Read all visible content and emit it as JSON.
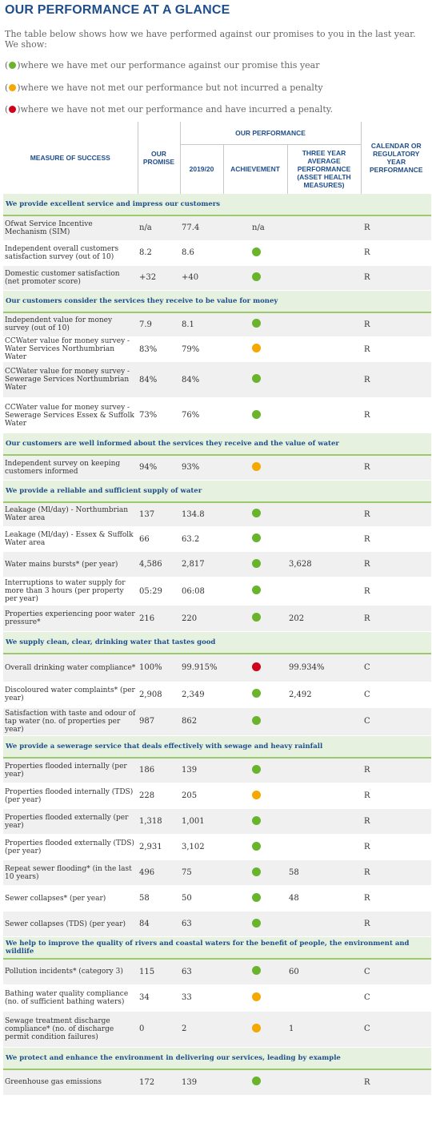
{
  "title": "OUR PERFORMANCE AT A GLANCE",
  "intro": "The table below shows how we have performed against our promises to you in the last year. We show:",
  "legend": [
    {
      "color": "green",
      "text": " where we have met our performance against our promise this year"
    },
    {
      "color": "amber",
      "text": " where we have not met our performance but not incurred a penalty"
    },
    {
      "color": "red",
      "text": " where we have not met our performance and have incurred a penalty."
    }
  ],
  "colors": {
    "green": "#6ab42d",
    "amber": "#f5a800",
    "red": "#d0021b",
    "accent": "#1f4e8c",
    "section_bg": "#e6f2df"
  },
  "headers": {
    "measure": "MEASURE OF SUCCESS",
    "promise": "OUR PROMISE",
    "performance": "OUR PERFORMANCE",
    "year": "2019/20",
    "achievement": "ACHIEVEMENT",
    "three_year": "THREE YEAR AVERAGE PERFORMANCE (ASSET HEALTH MEASURES)",
    "calendar": "CALENDAR OR REGULATORY YEAR PERFORMANCE"
  },
  "sections": [
    {
      "title": "We provide excellent service and impress our customers",
      "rows": [
        {
          "measure": "Ofwat Service Incentive Mechanism (SIM)",
          "promise": "n/a",
          "year": "77.4",
          "achievement": "n/a",
          "three": "",
          "cal": "R"
        },
        {
          "measure": "Independent overall customers satisfaction survey (out of 10)",
          "promise": "8.2",
          "year": "8.6",
          "achievement": "green",
          "three": "",
          "cal": "R"
        },
        {
          "measure": "Domestic customer satisfaction (net promoter score)",
          "promise": "+32",
          "year": "+40",
          "achievement": "green",
          "three": "",
          "cal": "R"
        }
      ]
    },
    {
      "title": "Our customers consider the services they receive to be value for money",
      "rows": [
        {
          "measure": "Independent value for money survey (out of 10)",
          "promise": "7.9",
          "year": "8.1",
          "achievement": "green",
          "three": "",
          "cal": "R"
        },
        {
          "measure": "CCWater value for money survey - Water Services Northumbrian Water",
          "promise": "83%",
          "year": "79%",
          "achievement": "amber",
          "three": "",
          "cal": "R"
        },
        {
          "measure": "CCWater value for money survey - Sewerage Services Northumbrian Water",
          "promise": "84%",
          "year": "84%",
          "achievement": "green",
          "three": "",
          "cal": "R"
        },
        {
          "measure": "CCWater value for money survey - Sewerage Services Essex & Suffolk Water",
          "promise": "73%",
          "year": "76%",
          "achievement": "green",
          "three": "",
          "cal": "R"
        }
      ]
    },
    {
      "title": "Our customers are well informed about the services they receive and the value of water",
      "rows": [
        {
          "measure": "Independent survey on keeping customers informed",
          "promise": "94%",
          "year": "93%",
          "achievement": "amber",
          "three": "",
          "cal": "R"
        }
      ]
    },
    {
      "title": "We provide a reliable and sufficient supply of water",
      "rows": [
        {
          "measure": "Leakage (Ml/day) - Northumbrian Water area",
          "promise": "137",
          "year": "134.8",
          "achievement": "green",
          "three": "",
          "cal": "R"
        },
        {
          "measure": "Leakage (Ml/day) - Essex & Suffolk Water area",
          "promise": "66",
          "year": "63.2",
          "achievement": "green",
          "three": "",
          "cal": "R"
        },
        {
          "measure": "Water mains bursts* (per year)",
          "promise": "4,586",
          "year": "2,817",
          "achievement": "green",
          "three": "3,628",
          "cal": "R"
        },
        {
          "measure": "Interruptions to water supply for more than 3 hours (per property per year)",
          "promise": "05:29",
          "year": "06:08",
          "achievement": "green",
          "three": "",
          "cal": "R"
        },
        {
          "measure": "Properties experiencing poor water pressure*",
          "promise": "216",
          "year": "220",
          "achievement": "green",
          "three": "202",
          "cal": "R"
        }
      ]
    },
    {
      "title": "We supply clean, clear, drinking water that tastes good",
      "rows": [
        {
          "measure": "Overall drinking water compliance*",
          "promise": "100%",
          "year": "99.915%",
          "achievement": "red",
          "three": "99.934%",
          "cal": "C"
        },
        {
          "measure": "Discoloured water complaints* (per year)",
          "promise": "2,908",
          "year": "2,349",
          "achievement": "green",
          "three": "2,492",
          "cal": "C"
        },
        {
          "measure": "Satisfaction with taste and odour of tap water (no. of properties per year)",
          "promise": "987",
          "year": "862",
          "achievement": "green",
          "three": "",
          "cal": "C"
        }
      ]
    },
    {
      "title": "We provide a sewerage service that deals effectively with sewage and heavy rainfall",
      "rows": [
        {
          "measure": "Properties flooded internally (per year)",
          "promise": "186",
          "year": "139",
          "achievement": "green",
          "three": "",
          "cal": "R"
        },
        {
          "measure": "Properties flooded internally (TDS) (per year)",
          "promise": "228",
          "year": "205",
          "achievement": "amber",
          "three": "",
          "cal": "R"
        },
        {
          "measure": "Properties flooded externally (per year)",
          "promise": "1,318",
          "year": "1,001",
          "achievement": "green",
          "three": "",
          "cal": "R"
        },
        {
          "measure": "Properties flooded externally (TDS) (per year)",
          "promise": "2,931",
          "year": "3,102",
          "achievement": "green",
          "three": "",
          "cal": "R"
        },
        {
          "measure": "Repeat sewer flooding* (in the last 10 years)",
          "promise": "496",
          "year": "75",
          "achievement": "green",
          "three": "58",
          "cal": "R"
        },
        {
          "measure": "Sewer collapses* (per year)",
          "promise": "58",
          "year": "50",
          "achievement": "green",
          "three": "48",
          "cal": "R"
        },
        {
          "measure": "Sewer collapses (TDS) (per year)",
          "promise": "84",
          "year": "63",
          "achievement": "green",
          "three": "",
          "cal": "R"
        }
      ]
    },
    {
      "title": "We help to improve the quality of rivers and coastal waters for the benefit of people, the environment and wildlife",
      "rows": [
        {
          "measure": "Pollution incidents* (category 3)",
          "promise": "115",
          "year": "63",
          "achievement": "green",
          "three": "60",
          "cal": "C"
        },
        {
          "measure": "Bathing water quality compliance (no. of sufficient bathing waters)",
          "promise": "34",
          "year": "33",
          "achievement": "amber",
          "three": "",
          "cal": "C"
        },
        {
          "measure": "Sewage treatment discharge compliance* (no. of discharge permit condition failures)",
          "promise": "0",
          "year": "2",
          "achievement": "amber",
          "three": "1",
          "cal": "C"
        }
      ]
    },
    {
      "title": "We protect and enhance the environment in delivering our services, leading by example",
      "rows": [
        {
          "measure": "Greenhouse gas emissions",
          "promise": "172",
          "year": "139",
          "achievement": "green",
          "three": "",
          "cal": "R"
        }
      ]
    }
  ]
}
